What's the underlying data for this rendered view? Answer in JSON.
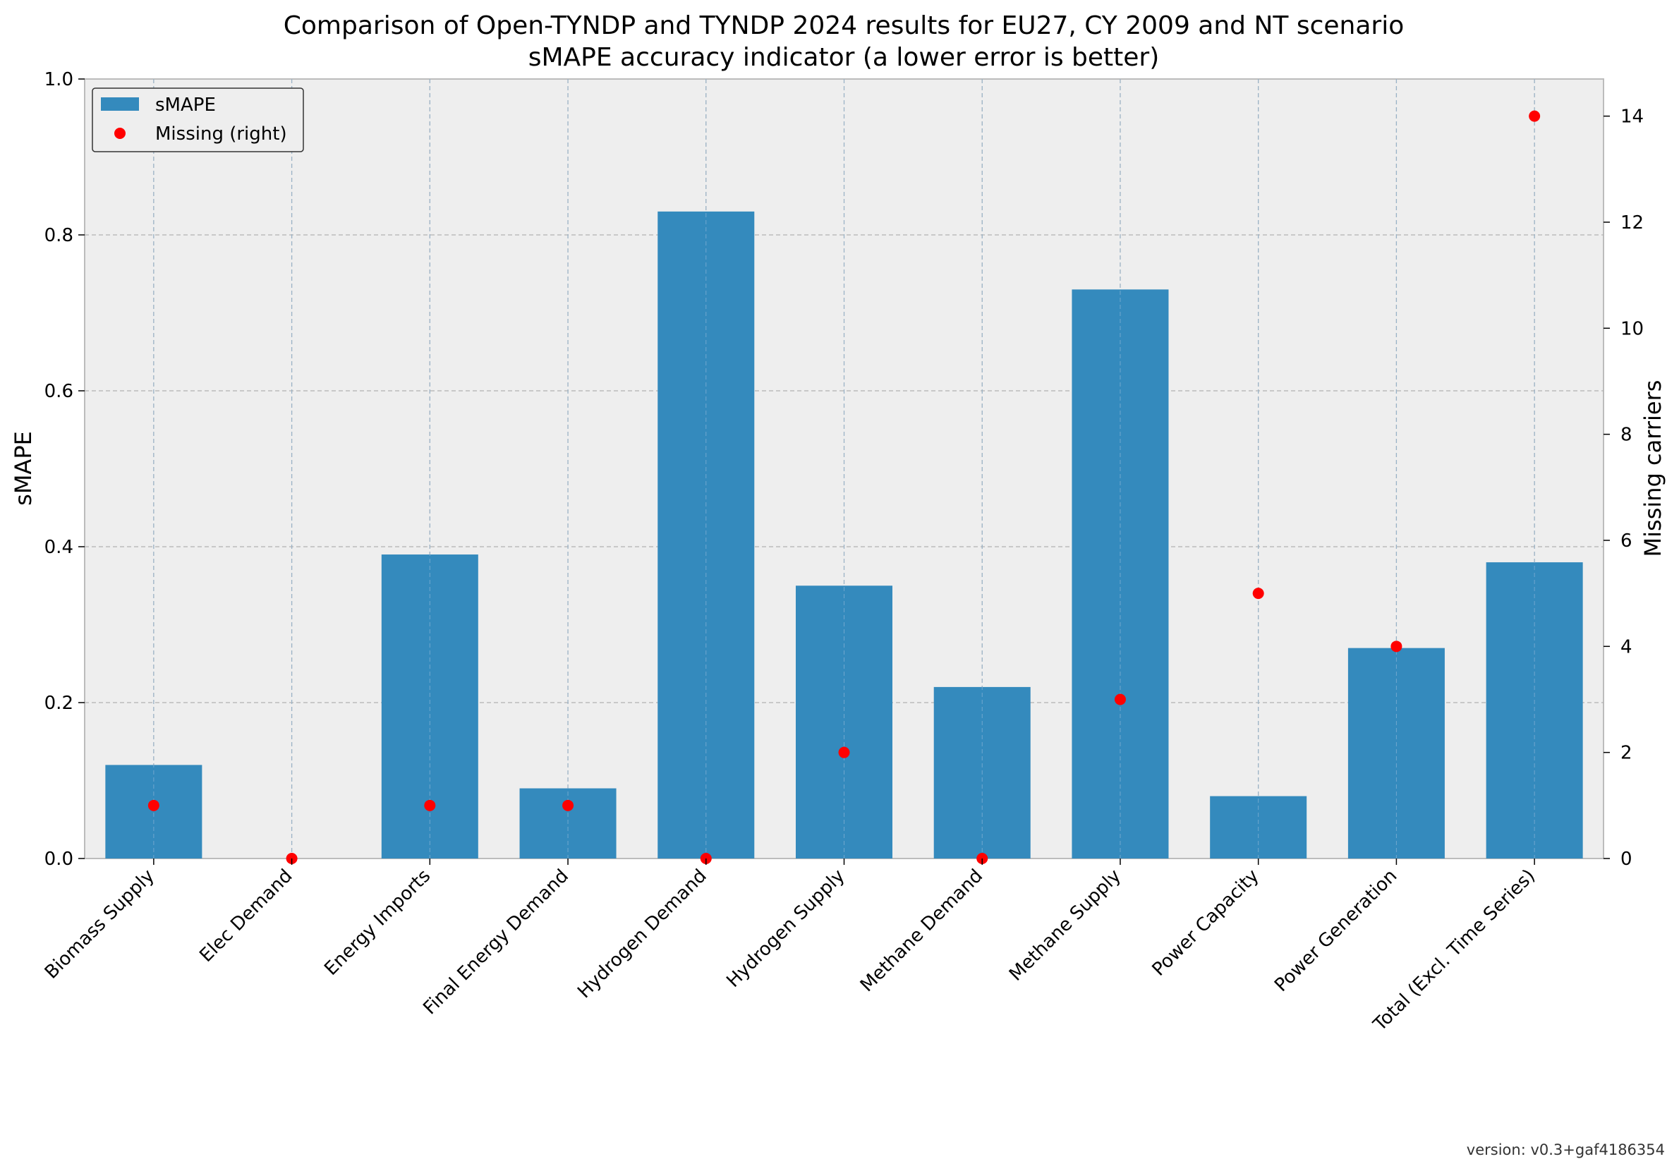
{
  "chart_data": {
    "type": "bar",
    "title": "Comparison of Open-TYNDP and TYNDP 2024 results for EU27, CY 2009 and NT scenario",
    "subtitle": "sMAPE accuracy indicator (a lower error is better)",
    "categories": [
      "Biomass Supply",
      "Elec Demand",
      "Energy Imports",
      "Final Energy Demand",
      "Hydrogen Demand",
      "Hydrogen Supply",
      "Methane Demand",
      "Methane Supply",
      "Power Capacity",
      "Power Generation",
      "Total (Excl. Time Series)"
    ],
    "series": [
      {
        "name": "sMAPE",
        "type": "bar",
        "axis": "left",
        "color": "#348ABD",
        "values": [
          0.12,
          0.0,
          0.39,
          0.09,
          0.83,
          0.35,
          0.22,
          0.73,
          0.08,
          0.27,
          0.38
        ]
      },
      {
        "name": "Missing (right)",
        "type": "scatter",
        "axis": "right",
        "color": "#FF0000",
        "values": [
          1,
          0,
          1,
          1,
          0,
          2,
          0,
          3,
          5,
          4,
          14
        ]
      }
    ],
    "ylabel": "sMAPE",
    "ylim": [
      0,
      1.0
    ],
    "yticks": [
      "0.0",
      "0.2",
      "0.4",
      "0.6",
      "0.8",
      "1.0"
    ],
    "y2label": "Missing carriers",
    "y2lim": [
      0,
      14.7
    ],
    "y2ticks": [
      "0",
      "2",
      "4",
      "6",
      "8",
      "10",
      "12",
      "14"
    ],
    "grid": true,
    "legend": "top-left",
    "xlabel": ""
  },
  "footer": {
    "version": "version: v0.3+gaf4186354"
  }
}
